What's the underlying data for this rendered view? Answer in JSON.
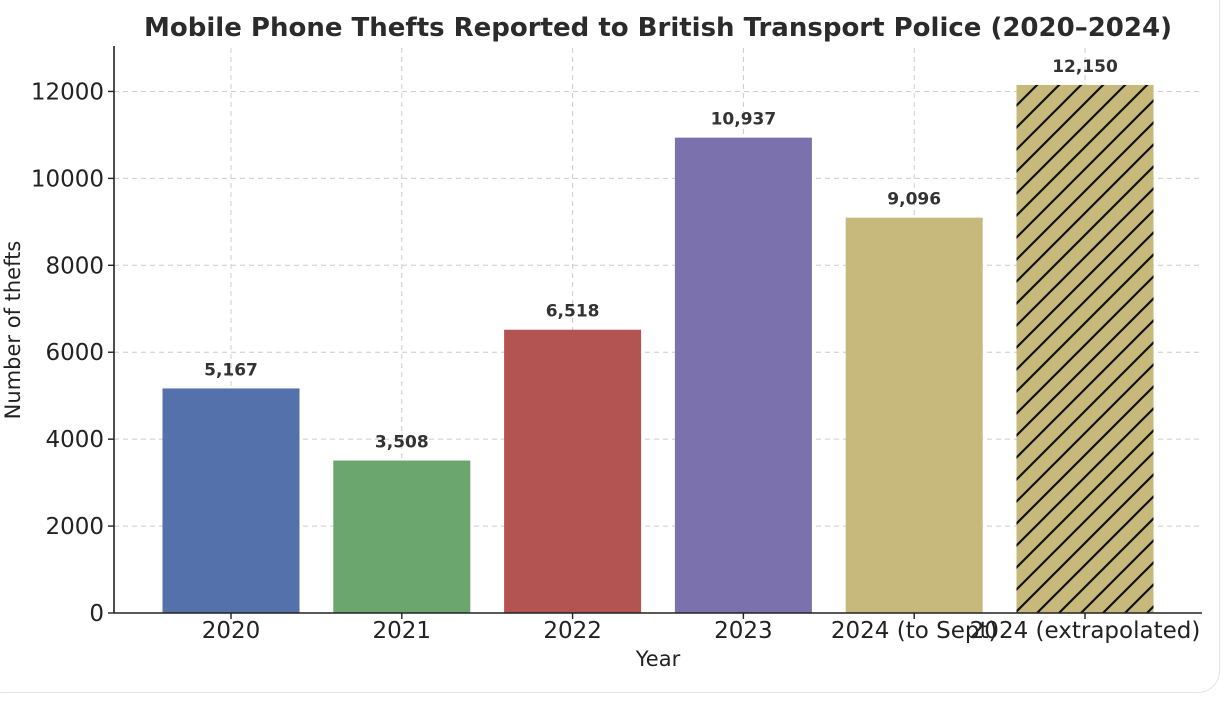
{
  "chart_data": {
    "type": "bar",
    "title": "Mobile Phone Thefts Reported to British Transport Police (2020–2024)",
    "xlabel": "Year",
    "ylabel": "Number of thefts",
    "categories": [
      "2020",
      "2021",
      "2022",
      "2023",
      "2024 (to Sept)",
      "2024 (extrapolated)"
    ],
    "values": [
      5167,
      3508,
      6518,
      10937,
      9096,
      12150
    ],
    "data_labels": [
      "5,167",
      "3,508",
      "6,518",
      "10,937",
      "9,096",
      "12,150"
    ],
    "colors": [
      "#5471ab",
      "#6aa66e",
      "#b35453",
      "#7b71ac",
      "#c7b87c",
      "#c7b87c"
    ],
    "hatched": [
      false,
      false,
      false,
      false,
      false,
      true
    ],
    "ylim": [
      0,
      13000
    ],
    "yticks": [
      0,
      2000,
      4000,
      6000,
      8000,
      10000,
      12000
    ],
    "ytick_labels": [
      "0",
      "2000",
      "4000",
      "6000",
      "8000",
      "10000",
      "12000"
    ],
    "grid": true,
    "grid_color": "#cccccc"
  }
}
